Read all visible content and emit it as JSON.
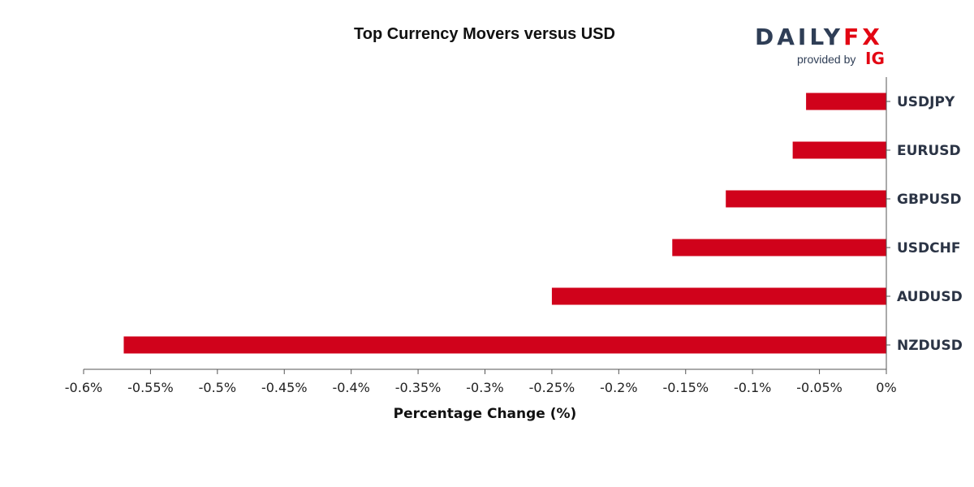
{
  "header": {
    "title": "Top Currency Movers versus USD"
  },
  "logo": {
    "brand_part1": "DAILY",
    "brand_part2": "FX",
    "provided_by": "provided by",
    "ig": "IG"
  },
  "colors": {
    "bar": "#d0021b",
    "axis": "#555555",
    "brand_dark": "#2f3e56",
    "brand_red": "#e30613"
  },
  "chart_data": {
    "type": "bar",
    "orientation": "horizontal",
    "title": "Top Currency Movers versus USD",
    "xlabel": "Percentage Change (%)",
    "ylabel": "",
    "categories": [
      "USDJPY",
      "EURUSD",
      "GBPUSD",
      "USDCHF",
      "AUDUSD",
      "NZDUSD"
    ],
    "values": [
      -0.06,
      -0.07,
      -0.12,
      -0.16,
      -0.25,
      -0.57
    ],
    "xlim": [
      -0.6,
      0
    ],
    "x_ticks": [
      -0.6,
      -0.55,
      -0.5,
      -0.45,
      -0.4,
      -0.35,
      -0.3,
      -0.25,
      -0.2,
      -0.15,
      -0.1,
      -0.05,
      0
    ],
    "x_tick_labels": [
      "-0.6%",
      "-0.55%",
      "-0.5%",
      "-0.45%",
      "-0.4%",
      "-0.35%",
      "-0.3%",
      "-0.25%",
      "-0.2%",
      "-0.15%",
      "-0.1%",
      "-0.05%",
      "0%"
    ],
    "grid": false,
    "category_axis_side": "right"
  }
}
